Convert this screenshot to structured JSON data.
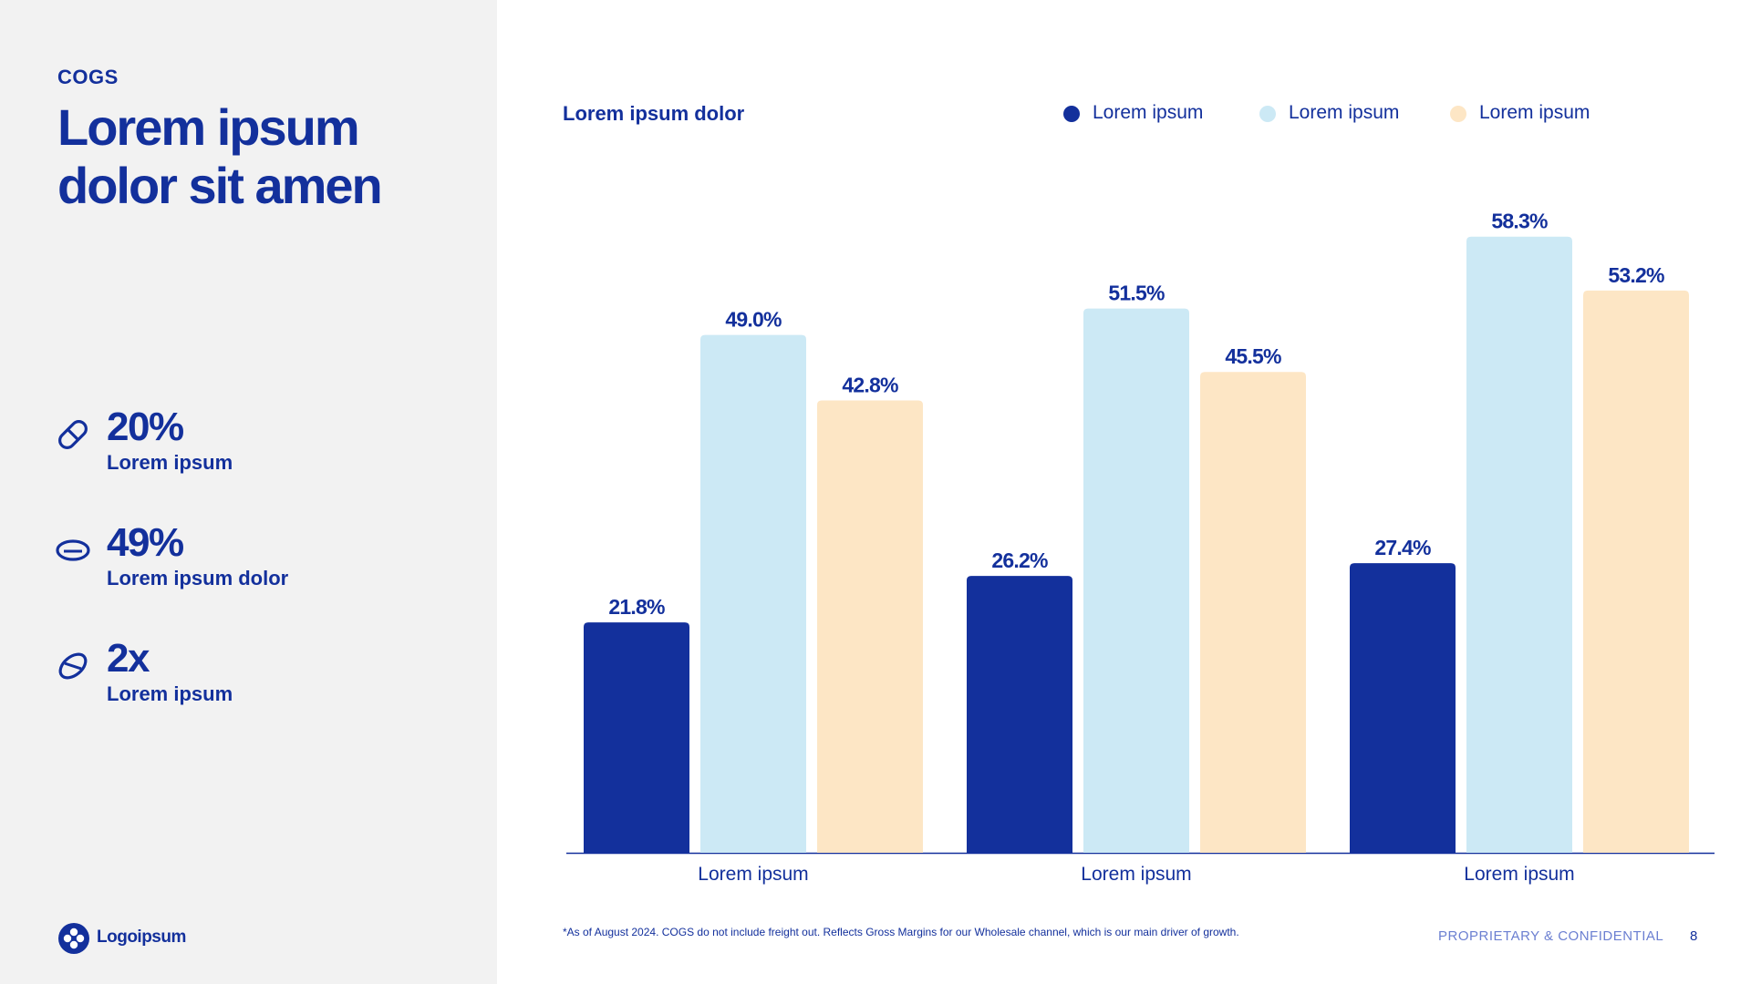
{
  "sidebar": {
    "eyebrow": "COGS",
    "title": "Lorem ipsum dolor sit amen",
    "stats": [
      {
        "value": "20%",
        "label": "Lorem ipsum",
        "icon": "pill-icon"
      },
      {
        "value": "49%",
        "label": "Lorem ipsum dolor",
        "icon": "oval-tablet-icon"
      },
      {
        "value": "2x",
        "label": "Lorem ipsum",
        "icon": "capsule-icon"
      }
    ],
    "logo": {
      "name": "Logoipsum",
      "icon": "logo-icon"
    }
  },
  "colors": {
    "primary": "#13309c",
    "light_blue": "#cce9f5",
    "peach": "#fde6c5",
    "sidebar_bg": "#f2f2f2",
    "muted": "#6b7fd1"
  },
  "chart_data": {
    "type": "bar",
    "title": "Lorem ipsum dolor",
    "categories": [
      "Lorem ipsum",
      "Lorem ipsum",
      "Lorem ipsum"
    ],
    "series": [
      {
        "name": "Lorem ipsum",
        "color": "#13309c",
        "values": [
          21.8,
          26.2,
          27.4
        ],
        "labels": [
          "21.8%",
          "26.2%",
          "27.4%"
        ]
      },
      {
        "name": "Lorem ipsum",
        "color": "#cce9f5",
        "values": [
          49.0,
          51.5,
          58.3
        ],
        "labels": [
          "49.0%",
          "51.5%",
          "58.3%"
        ]
      },
      {
        "name": "Lorem ipsum",
        "color": "#fde6c5",
        "values": [
          42.8,
          45.5,
          53.2
        ],
        "labels": [
          "42.8%",
          "45.5%",
          "53.2%"
        ]
      }
    ],
    "xlabel": "",
    "ylabel": "",
    "ylim": [
      0,
      60
    ],
    "grid": false,
    "legend": "top-right"
  },
  "footer": {
    "footnote": "*As of August 2024. COGS do not include freight out. Reflects Gross Margins for our Wholesale channel, which is our main driver of growth.",
    "confidential": "PROPRIETARY & CONFIDENTIAL",
    "page_number": "8"
  }
}
